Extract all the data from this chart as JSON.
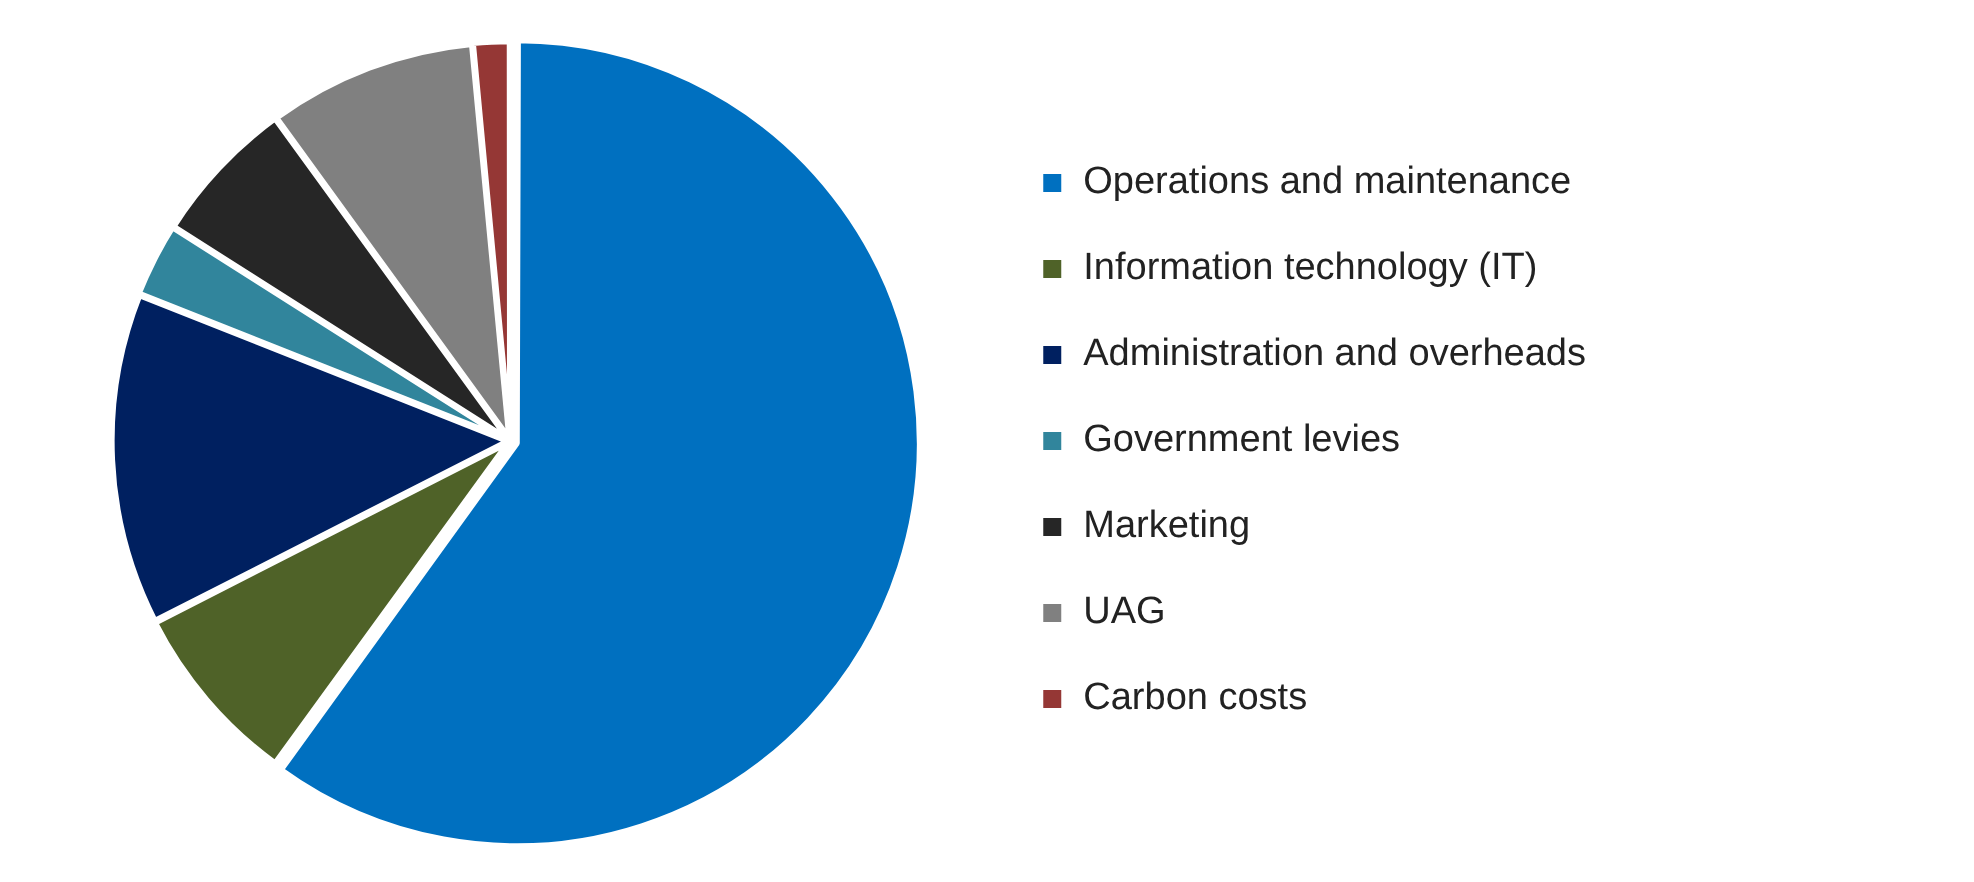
{
  "chart_data": {
    "type": "pie",
    "categories": [
      "Operations and maintenance",
      "Information technology (IT)",
      "Administration and overheads",
      "Government levies",
      "Marketing",
      "UAG",
      "Carbon costs"
    ],
    "values": [
      60,
      7.5,
      13.5,
      3,
      6,
      8.5,
      1.5
    ],
    "colors": [
      "#0070c0",
      "#4f6228",
      "#002060",
      "#31859c",
      "#262626",
      "#808080",
      "#953735"
    ],
    "legend": "right"
  }
}
